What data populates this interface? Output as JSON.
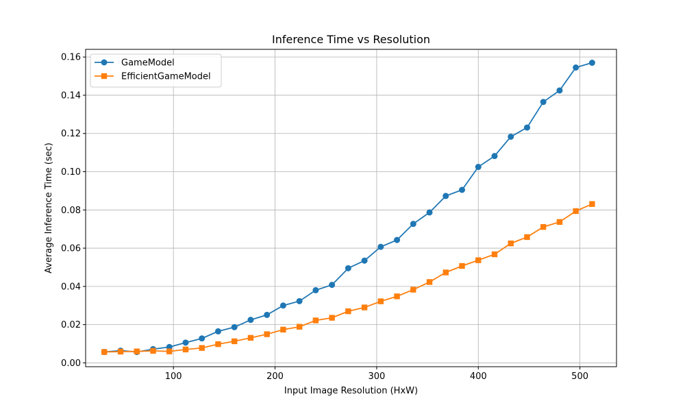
{
  "chart_data": {
    "type": "line",
    "title": "Inference Time vs Resolution",
    "xlabel": "Input Image Resolution (HxW)",
    "ylabel": "Average Inference Time (sec)",
    "xlim": [
      13.6,
      536
    ],
    "ylim": [
      -0.002,
      0.164
    ],
    "x_ticks": [
      100,
      200,
      300,
      400,
      500
    ],
    "x_tick_labels": [
      "100",
      "200",
      "300",
      "400",
      "500"
    ],
    "y_ticks": [
      0.0,
      0.02,
      0.04,
      0.06,
      0.08,
      0.1,
      0.12,
      0.14,
      0.16
    ],
    "y_tick_labels": [
      "0.00",
      "0.02",
      "0.04",
      "0.06",
      "0.08",
      "0.10",
      "0.12",
      "0.14",
      "0.16"
    ],
    "grid": true,
    "legend_position": "top-left",
    "x": [
      32,
      48,
      64,
      80,
      96,
      112,
      128,
      144,
      160,
      176,
      192,
      208,
      224,
      240,
      256,
      272,
      288,
      304,
      320,
      336,
      352,
      368,
      384,
      400,
      416,
      432,
      448,
      464,
      480,
      496,
      512
    ],
    "series": [
      {
        "name": "GameModel",
        "color": "#1f77b4",
        "marker": "circle",
        "values": [
          0.0057,
          0.0064,
          0.0057,
          0.0072,
          0.0083,
          0.0106,
          0.0128,
          0.0165,
          0.0187,
          0.0225,
          0.0251,
          0.03,
          0.0323,
          0.038,
          0.0408,
          0.0495,
          0.0535,
          0.0607,
          0.0643,
          0.0727,
          0.0787,
          0.0873,
          0.0905,
          0.1025,
          0.1082,
          0.1183,
          0.1231,
          0.1365,
          0.1425,
          0.1545,
          0.157
        ]
      },
      {
        "name": "EfficientGameModel",
        "color": "#ff7f0e",
        "marker": "square",
        "values": [
          0.0057,
          0.0059,
          0.006,
          0.0063,
          0.006,
          0.007,
          0.0078,
          0.0098,
          0.0113,
          0.0131,
          0.015,
          0.0174,
          0.0189,
          0.0222,
          0.0236,
          0.027,
          0.029,
          0.0322,
          0.0348,
          0.0383,
          0.0423,
          0.0473,
          0.0507,
          0.0537,
          0.0568,
          0.0625,
          0.0658,
          0.0711,
          0.0737,
          0.0794,
          0.0831
        ]
      }
    ]
  }
}
